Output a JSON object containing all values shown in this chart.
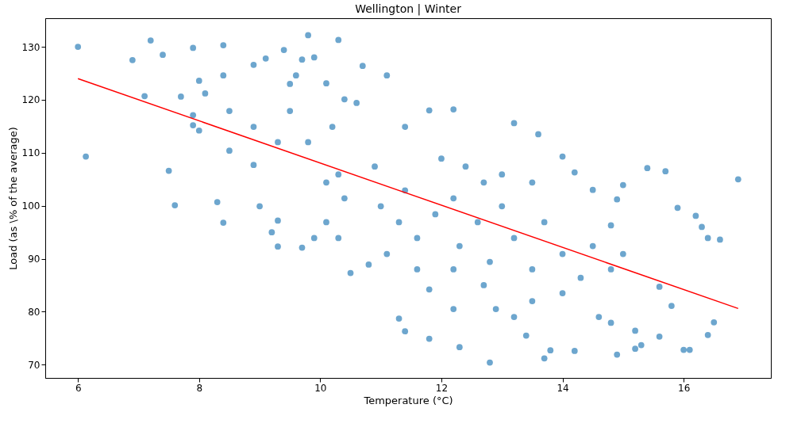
{
  "chart_data": {
    "type": "scatter",
    "title": "Wellington | Winter",
    "xlabel": "Temperature (°C)",
    "ylabel": "Load (as \\% of the average)",
    "xlim": [
      5.46,
      17.44
    ],
    "ylim": [
      67.5,
      135.4
    ],
    "xticks": [
      6,
      8,
      10,
      12,
      14,
      16
    ],
    "yticks": [
      70,
      80,
      90,
      100,
      110,
      120,
      130
    ],
    "grid": false,
    "series": [
      {
        "marker": "circle",
        "color": "#1f77b4",
        "x": [
          6.0,
          6.13,
          6.9,
          7.1,
          7.2,
          7.4,
          7.5,
          7.6,
          7.7,
          7.9,
          7.9,
          7.9,
          8.0,
          8.0,
          8.1,
          8.3,
          8.4,
          8.4,
          8.4,
          8.5,
          8.5,
          8.9,
          8.9,
          9.0,
          9.1,
          9.2,
          9.3,
          9.3,
          9.4,
          9.5,
          9.6,
          9.7,
          9.7,
          9.8,
          9.9,
          9.9,
          10.1,
          10.3,
          10.4,
          10.7,
          10.5,
          11.1,
          10.8,
          11.3,
          11.4,
          11.8,
          11.8,
          11.8,
          12.2,
          12.2,
          12.3,
          12.8,
          12.9,
          13.2,
          13.2,
          13.4,
          13.6,
          13.7,
          13.8,
          14.0,
          14.2,
          14.2,
          14.5,
          14.6,
          14.8,
          14.9,
          14.9,
          15.0,
          15.2,
          15.2,
          15.3,
          15.4,
          15.6,
          15.7,
          15.8,
          15.9,
          16.0,
          16.1,
          16.2,
          16.3,
          16.4,
          16.5,
          16.6,
          16.9,
          16.4,
          14.8,
          15.6,
          9.8,
          10.1,
          10.3,
          10.4,
          10.1,
          10.9,
          11.0,
          11.3,
          11.4,
          11.6,
          11.9,
          12.2,
          12.3,
          12.6,
          12.8,
          13.0,
          13.2,
          13.5,
          13.7,
          14.0,
          14.3,
          14.5,
          14.8,
          15.0,
          12.2,
          12.7,
          13.5,
          14.0,
          11.6,
          9.3,
          8.9,
          9.5,
          10.2,
          10.6,
          11.4,
          12.4,
          13.0,
          13.5,
          10.3,
          11.1,
          12.0,
          12.7
        ],
        "values": [
          130,
          109.3,
          127.5,
          120.7,
          131.2,
          128.5,
          106.6,
          100.1,
          120.6,
          129.8,
          117.1,
          115.2,
          114.2,
          123.6,
          121.2,
          100.7,
          130.3,
          96.8,
          124.6,
          110.4,
          117.9,
          126.6,
          107.7,
          99.9,
          127.8,
          95,
          92.3,
          97.2,
          129.4,
          123,
          124.6,
          127.6,
          92.1,
          132.2,
          128,
          93.9,
          123.1,
          131.3,
          120.1,
          126.4,
          87.3,
          124.6,
          88.9,
          78.7,
          76.3,
          84.2,
          74.9,
          118,
          118.2,
          80.5,
          73.3,
          70.4,
          80.5,
          115.6,
          79,
          75.5,
          113.5,
          71.2,
          72.7,
          109.3,
          72.6,
          106.3,
          103,
          79,
          77.9,
          71.9,
          101.2,
          103.9,
          76.4,
          73,
          73.7,
          107.1,
          75.3,
          106.5,
          81.1,
          99.6,
          72.8,
          72.8,
          98.1,
          96,
          75.6,
          78,
          93.6,
          105,
          93.9,
          96.3,
          84.7,
          112,
          104.4,
          105.9,
          101.4,
          96.9,
          107.4,
          99.9,
          96.9,
          102.9,
          93.9,
          98.4,
          101.4,
          92.4,
          96.9,
          89.4,
          99.9,
          93.9,
          88,
          96.9,
          90.9,
          86.4,
          92.4,
          88,
          90.9,
          88,
          85,
          82,
          83.5,
          88,
          112,
          114.9,
          117.9,
          114.9,
          119.4,
          114.9,
          107.4,
          105.9,
          104.4,
          93.9,
          90.9,
          108.9,
          104.4
        ]
      },
      {
        "type": "line",
        "color": "#ff0000",
        "x": [
          6,
          16.9
        ],
        "values": [
          124,
          80.6
        ]
      }
    ]
  }
}
